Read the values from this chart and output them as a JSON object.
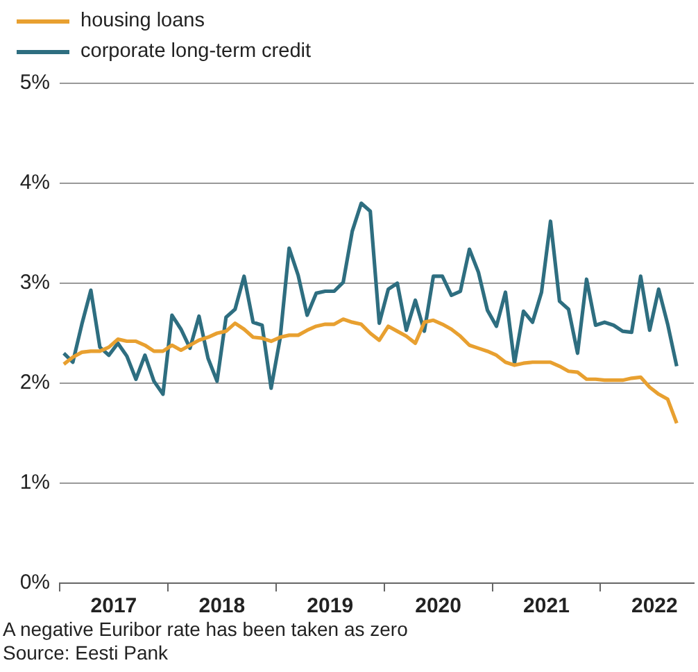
{
  "chart_data": {
    "type": "line",
    "x": [
      "2017-01-15",
      "2017-02-15",
      "2017-03-15",
      "2017-04-15",
      "2017-05-15",
      "2017-06-15",
      "2017-07-15",
      "2017-08-15",
      "2017-09-15",
      "2017-10-15",
      "2017-11-15",
      "2017-12-15",
      "2018-01-15",
      "2018-02-15",
      "2018-03-15",
      "2018-04-15",
      "2018-05-15",
      "2018-06-15",
      "2018-07-15",
      "2018-08-15",
      "2018-09-15",
      "2018-10-15",
      "2018-11-15",
      "2018-12-15",
      "2019-01-15",
      "2019-02-15",
      "2019-03-15",
      "2019-04-15",
      "2019-05-15",
      "2019-06-15",
      "2019-07-15",
      "2019-08-15",
      "2019-09-15",
      "2019-10-15",
      "2019-11-15",
      "2019-12-15",
      "2020-01-15",
      "2020-02-15",
      "2020-03-15",
      "2020-04-15",
      "2020-05-15",
      "2020-06-15",
      "2020-07-15",
      "2020-08-15",
      "2020-09-15",
      "2020-10-15",
      "2020-11-15",
      "2020-12-15",
      "2021-01-15",
      "2021-02-15",
      "2021-03-15",
      "2021-04-15",
      "2021-05-15",
      "2021-06-15",
      "2021-07-15",
      "2021-08-15",
      "2021-09-15",
      "2021-10-15",
      "2021-11-15",
      "2021-12-15",
      "2022-01-15",
      "2022-02-15",
      "2022-03-15",
      "2022-04-15",
      "2022-05-15",
      "2022-06-15",
      "2022-07-15",
      "2022-08-15",
      "2022-09-15"
    ],
    "series": [
      {
        "name": "housing loans",
        "color": "#e8a030",
        "values": [
          2.19,
          2.26,
          2.31,
          2.32,
          2.32,
          2.36,
          2.44,
          2.42,
          2.42,
          2.38,
          2.32,
          2.32,
          2.38,
          2.33,
          2.38,
          2.43,
          2.46,
          2.5,
          2.52,
          2.6,
          2.54,
          2.46,
          2.45,
          2.42,
          2.46,
          2.48,
          2.48,
          2.53,
          2.57,
          2.59,
          2.59,
          2.64,
          2.61,
          2.59,
          2.5,
          2.43,
          2.57,
          2.52,
          2.47,
          2.4,
          2.61,
          2.63,
          2.59,
          2.54,
          2.47,
          2.38,
          2.35,
          2.32,
          2.28,
          2.21,
          2.18,
          2.2,
          2.21,
          2.21,
          2.21,
          2.17,
          2.12,
          2.11,
          2.04,
          2.04,
          2.03,
          2.03,
          2.03,
          2.05,
          2.06,
          1.96,
          1.89,
          1.84,
          1.6
        ]
      },
      {
        "name": "corporate long-term credit",
        "color": "#2e6e80",
        "values": [
          2.3,
          2.21,
          2.59,
          2.93,
          2.36,
          2.28,
          2.4,
          2.27,
          2.04,
          2.28,
          2.02,
          1.89,
          2.68,
          2.54,
          2.35,
          2.67,
          2.25,
          2.02,
          2.66,
          2.74,
          3.07,
          2.61,
          2.58,
          1.95,
          2.45,
          3.35,
          3.08,
          2.68,
          2.9,
          2.92,
          2.92,
          3.01,
          3.52,
          3.8,
          3.72,
          2.6,
          2.94,
          3.0,
          2.53,
          2.83,
          2.52,
          3.07,
          3.07,
          2.88,
          2.92,
          3.34,
          3.11,
          2.73,
          2.57,
          2.91,
          2.2,
          2.72,
          2.61,
          2.91,
          3.62,
          2.82,
          2.74,
          2.3,
          3.04,
          2.58,
          2.61,
          2.58,
          2.52,
          2.51,
          3.07,
          2.53,
          2.94,
          2.59,
          2.17
        ]
      }
    ],
    "xlim": [
      "2017-01-01",
      "2022-11-12"
    ],
    "xticks": [
      {
        "value": "2017-01-01",
        "label": null
      },
      {
        "value": "2017-07-01",
        "label": "2017"
      },
      {
        "value": "2018-01-01",
        "label": null
      },
      {
        "value": "2018-07-01",
        "label": "2018"
      },
      {
        "value": "2019-01-01",
        "label": null
      },
      {
        "value": "2019-07-01",
        "label": "2019"
      },
      {
        "value": "2020-01-01",
        "label": null
      },
      {
        "value": "2020-07-01",
        "label": "2020"
      },
      {
        "value": "2021-01-01",
        "label": null
      },
      {
        "value": "2021-07-01",
        "label": "2021"
      },
      {
        "value": "2022-01-01",
        "label": null
      },
      {
        "value": "2022-07-01",
        "label": "2022"
      }
    ],
    "ylim": [
      0,
      5
    ],
    "yticks": [
      {
        "value": 0,
        "label": "0%"
      },
      {
        "value": 1,
        "label": "1%"
      },
      {
        "value": 2,
        "label": "2%"
      },
      {
        "value": 3,
        "label": "3%"
      },
      {
        "value": 4,
        "label": "4%"
      },
      {
        "value": 5,
        "label": "5%"
      }
    ],
    "grid": "y",
    "legend": "top left",
    "annotations": [
      "A negative Euribor rate has been taken as zero",
      "Source: Eesti Pank"
    ]
  }
}
